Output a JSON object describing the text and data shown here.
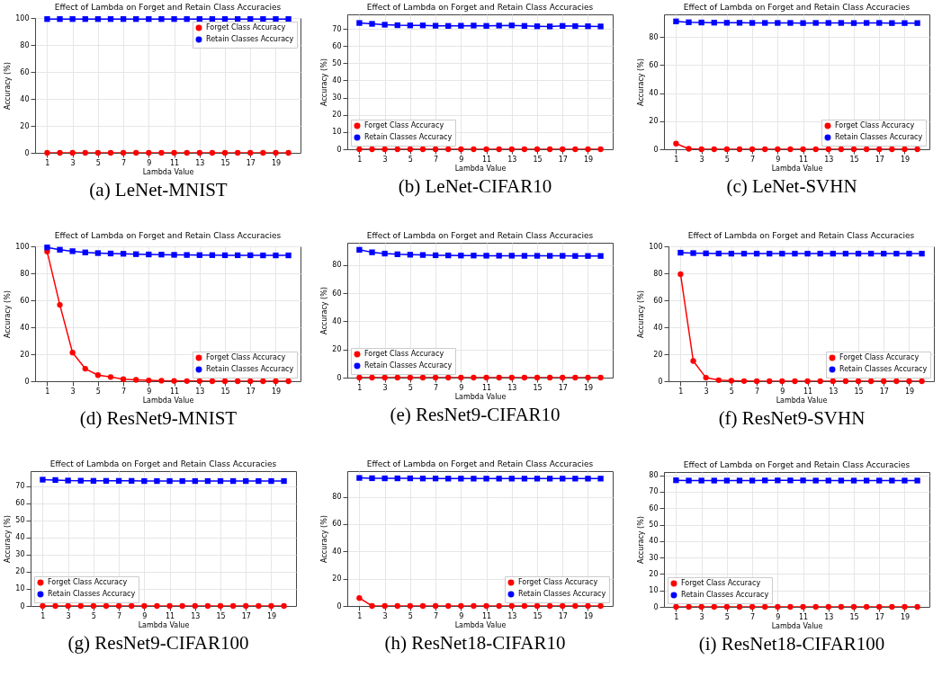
{
  "chart_data": [
    {
      "type": "line",
      "title": "Effect of Lambda on Forget and Retain Class Accuracies",
      "xlabel": "Lambda Value",
      "ylabel": "Accuracy (%)",
      "annotations": [
        "(a) LeNet-MNIST"
      ],
      "x": [
        1,
        2,
        3,
        4,
        5,
        6,
        7,
        8,
        9,
        10,
        11,
        12,
        13,
        14,
        15,
        16,
        17,
        18,
        19,
        20
      ],
      "xlim": [
        0.05,
        20.95
      ],
      "xticks": [
        1,
        3,
        5,
        7,
        9,
        11,
        13,
        15,
        17,
        19
      ],
      "ylim": [
        0,
        100
      ],
      "yticks": [
        0,
        20,
        40,
        60,
        80,
        100
      ],
      "grid": true,
      "legend": "top right",
      "series": [
        {
          "name": "Forget Class Accuracy",
          "color": "#ff0000",
          "marker": "circle",
          "values": [
            0,
            0,
            0,
            0,
            0,
            0,
            0,
            0,
            0,
            0,
            0,
            0,
            0,
            0,
            0,
            0,
            0,
            0,
            0,
            0
          ]
        },
        {
          "name": "Retain Classes Accuracy",
          "color": "#0000ff",
          "marker": "square",
          "values": [
            99.2,
            99.2,
            99.2,
            99.2,
            99.2,
            99.2,
            99.2,
            99.2,
            99.2,
            99.2,
            99.2,
            99.2,
            99.2,
            99.2,
            99.2,
            99.2,
            99.2,
            99.2,
            99.2,
            99.2
          ]
        }
      ]
    },
    {
      "type": "line",
      "title": "Effect of Lambda on Forget and Retain Class Accuracies",
      "xlabel": "Lambda Value",
      "ylabel": "Accuracy (%)",
      "annotations": [
        "(b) LeNet-CIFAR10"
      ],
      "x": [
        1,
        2,
        3,
        4,
        5,
        6,
        7,
        8,
        9,
        10,
        11,
        12,
        13,
        14,
        15,
        16,
        17,
        18,
        19,
        20
      ],
      "xlim": [
        0.05,
        20.95
      ],
      "xticks": [
        1,
        3,
        5,
        7,
        9,
        11,
        13,
        15,
        17,
        19
      ],
      "ylim": [
        0,
        78.4
      ],
      "yticks": [
        0,
        10,
        20,
        30,
        40,
        50,
        60,
        70
      ],
      "grid": true,
      "legend": "bottom left",
      "series": [
        {
          "name": "Forget Class Accuracy",
          "color": "#ff0000",
          "marker": "circle",
          "values": [
            0,
            0,
            0,
            0,
            0,
            0,
            0,
            0,
            0,
            0,
            0,
            0,
            0,
            0,
            0,
            0,
            0,
            0,
            0,
            0
          ]
        },
        {
          "name": "Retain Classes Accuracy",
          "color": "#0000ff",
          "marker": "square",
          "values": [
            73.4,
            72.9,
            72.4,
            72.1,
            72.0,
            72.0,
            71.8,
            71.7,
            71.8,
            71.9,
            71.7,
            71.9,
            72.0,
            71.7,
            71.5,
            71.4,
            71.7,
            71.6,
            71.5,
            71.4
          ]
        }
      ]
    },
    {
      "type": "line",
      "title": "Effect of Lambda on Forget and Retain Class Accuracies",
      "xlabel": "Lambda Value",
      "ylabel": "Accuracy (%)",
      "annotations": [
        "(c) LeNet-SVHN"
      ],
      "x": [
        1,
        2,
        3,
        4,
        5,
        6,
        7,
        8,
        9,
        10,
        11,
        12,
        13,
        14,
        15,
        16,
        17,
        18,
        19,
        20
      ],
      "xlim": [
        0.05,
        20.95
      ],
      "xticks": [
        1,
        3,
        5,
        7,
        9,
        11,
        13,
        15,
        17,
        19
      ],
      "ylim": [
        0,
        96.2
      ],
      "yticks": [
        0,
        20,
        40,
        60,
        80
      ],
      "grid": true,
      "legend": "bottom right",
      "series": [
        {
          "name": "Forget Class Accuracy",
          "color": "#ff0000",
          "marker": "circle",
          "values": [
            4.0,
            0.3,
            0,
            0,
            0,
            0,
            0,
            0,
            0,
            0,
            0,
            0,
            0,
            0,
            0,
            0,
            0,
            0,
            0,
            0
          ]
        },
        {
          "name": "Retain Classes Accuracy",
          "color": "#0000ff",
          "marker": "square",
          "values": [
            91.2,
            90.6,
            90.4,
            90.3,
            90.2,
            90.2,
            90.1,
            90.1,
            90.1,
            90.1,
            90.0,
            90.1,
            90.1,
            90.1,
            90.0,
            90.1,
            90.1,
            90.0,
            90.0,
            90.0
          ]
        }
      ]
    },
    {
      "type": "line",
      "title": "Effect of Lambda on Forget and Retain Class Accuracies",
      "xlabel": "Lambda Value",
      "ylabel": "Accuracy (%)",
      "annotations": [
        "(d) ResNet9-MNIST"
      ],
      "x": [
        1,
        2,
        3,
        4,
        5,
        6,
        7,
        8,
        9,
        10,
        11,
        12,
        13,
        14,
        15,
        16,
        17,
        18,
        19,
        20
      ],
      "xlim": [
        0.05,
        20.95
      ],
      "xticks": [
        1,
        3,
        5,
        7,
        9,
        11,
        13,
        15,
        17,
        19
      ],
      "ylim": [
        0,
        100
      ],
      "yticks": [
        0,
        20,
        40,
        60,
        80,
        100
      ],
      "grid": true,
      "legend": "bottom right",
      "series": [
        {
          "name": "Forget Class Accuracy",
          "color": "#ff0000",
          "marker": "circle",
          "values": [
            96.1,
            56.6,
            21.2,
            9.3,
            4.5,
            3.1,
            1.5,
            1.0,
            0.6,
            0.4,
            0.2,
            0.1,
            0.1,
            0,
            0,
            0,
            0,
            0,
            0,
            0
          ]
        },
        {
          "name": "Retain Classes Accuracy",
          "color": "#0000ff",
          "marker": "square",
          "values": [
            99.2,
            97.5,
            96.4,
            95.5,
            95.0,
            94.7,
            94.5,
            94.2,
            94.0,
            93.9,
            93.7,
            93.6,
            93.5,
            93.5,
            93.4,
            93.4,
            93.4,
            93.3,
            93.3,
            93.3
          ]
        }
      ]
    },
    {
      "type": "line",
      "title": "Effect of Lambda on Forget and Retain Class Accuracies",
      "xlabel": "Lambda Value",
      "ylabel": "Accuracy (%)",
      "annotations": [
        "(e) ResNet9-CIFAR10"
      ],
      "x": [
        1,
        2,
        3,
        4,
        5,
        6,
        7,
        8,
        9,
        10,
        11,
        12,
        13,
        14,
        15,
        16,
        17,
        18,
        19,
        20
      ],
      "xlim": [
        0.05,
        20.95
      ],
      "xticks": [
        1,
        3,
        5,
        7,
        9,
        11,
        13,
        15,
        17,
        19
      ],
      "ylim": [
        0,
        95.9
      ],
      "yticks": [
        0,
        20,
        40,
        60,
        80
      ],
      "grid": true,
      "legend": "bottom left",
      "series": [
        {
          "name": "Forget Class Accuracy",
          "color": "#ff0000",
          "marker": "circle",
          "values": [
            0,
            0,
            0,
            0,
            0,
            0,
            0,
            0,
            0,
            0,
            0,
            0,
            0,
            0,
            0,
            0,
            0,
            0,
            0,
            0
          ]
        },
        {
          "name": "Retain Classes Accuracy",
          "color": "#0000ff",
          "marker": "square",
          "values": [
            90.9,
            89.1,
            88.2,
            87.7,
            87.4,
            87.2,
            87.0,
            86.9,
            86.8,
            86.8,
            86.7,
            86.7,
            86.7,
            86.6,
            86.6,
            86.6,
            86.6,
            86.5,
            86.5,
            86.5
          ]
        }
      ]
    },
    {
      "type": "line",
      "title": "Effect of Lambda on Forget and Retain Class Accuracies",
      "xlabel": "Lambda Value",
      "ylabel": "Accuracy (%)",
      "annotations": [
        "(f) ResNet9-SVHN"
      ],
      "x": [
        1,
        2,
        3,
        4,
        5,
        6,
        7,
        8,
        9,
        10,
        11,
        12,
        13,
        14,
        15,
        16,
        17,
        18,
        19,
        20
      ],
      "xlim": [
        0.05,
        20.95
      ],
      "xticks": [
        1,
        3,
        5,
        7,
        9,
        11,
        13,
        15,
        17,
        19
      ],
      "ylim": [
        0,
        100
      ],
      "yticks": [
        0,
        20,
        40,
        60,
        80,
        100
      ],
      "grid": true,
      "legend": "bottom right",
      "series": [
        {
          "name": "Forget Class Accuracy",
          "color": "#ff0000",
          "marker": "circle",
          "values": [
            79.4,
            15.0,
            2.6,
            0.8,
            0.4,
            0.1,
            0,
            0,
            0,
            0,
            0,
            0,
            0,
            0,
            0,
            0,
            0,
            0,
            0,
            0
          ]
        },
        {
          "name": "Retain Classes Accuracy",
          "color": "#0000ff",
          "marker": "square",
          "values": [
            95.3,
            95.0,
            94.8,
            94.7,
            94.6,
            94.6,
            94.6,
            94.6,
            94.6,
            94.6,
            94.6,
            94.6,
            94.6,
            94.6,
            94.6,
            94.6,
            94.6,
            94.6,
            94.6,
            94.6
          ]
        }
      ]
    },
    {
      "type": "line",
      "title": "Effect of Lambda on Forget and Retain Class Accuracies",
      "xlabel": "Lambda Value",
      "ylabel": "Accuracy (%)",
      "annotations": [
        "(g) ResNet9-CIFAR100"
      ],
      "x": [
        1,
        2,
        3,
        4,
        5,
        6,
        7,
        8,
        9,
        10,
        11,
        12,
        13,
        14,
        15,
        16,
        17,
        18,
        19,
        20
      ],
      "xlim": [
        0.05,
        20.95
      ],
      "xticks": [
        1,
        3,
        5,
        7,
        9,
        11,
        13,
        15,
        17,
        19
      ],
      "ylim": [
        0,
        78.8
      ],
      "yticks": [
        0,
        10,
        20,
        30,
        40,
        50,
        60,
        70
      ],
      "grid": true,
      "legend": "bottom left",
      "series": [
        {
          "name": "Forget Class Accuracy",
          "color": "#ff0000",
          "marker": "circle",
          "values": [
            0,
            0,
            0,
            0,
            0,
            0,
            0,
            0,
            0,
            0,
            0,
            0,
            0,
            0,
            0,
            0,
            0,
            0,
            0,
            0
          ]
        },
        {
          "name": "Retain Classes Accuracy",
          "color": "#0000ff",
          "marker": "square",
          "values": [
            73.8,
            73.6,
            73.3,
            73.2,
            73.1,
            73.1,
            73.1,
            73.1,
            73.0,
            73.0,
            73.0,
            73.0,
            73.0,
            73.0,
            73.0,
            73.0,
            73.0,
            73.0,
            73.0,
            73.0
          ]
        }
      ]
    },
    {
      "type": "line",
      "title": "Effect of Lambda on Forget and Retain Class Accuracies",
      "xlabel": "Lambda Value",
      "ylabel": "Accuracy (%)",
      "annotations": [
        "(h) ResNet18-CIFAR10"
      ],
      "x": [
        1,
        2,
        3,
        4,
        5,
        6,
        7,
        8,
        9,
        10,
        11,
        12,
        13,
        14,
        15,
        16,
        17,
        18,
        19,
        20
      ],
      "xlim": [
        0.05,
        20.95
      ],
      "xticks": [
        1,
        3,
        5,
        7,
        9,
        11,
        13,
        15,
        17,
        19
      ],
      "ylim": [
        0,
        98.8
      ],
      "yticks": [
        0,
        20,
        40,
        60,
        80
      ],
      "grid": true,
      "legend": "bottom right",
      "series": [
        {
          "name": "Forget Class Accuracy",
          "color": "#ff0000",
          "marker": "circle",
          "values": [
            5.8,
            0,
            0,
            0,
            0,
            0,
            0,
            0,
            0,
            0,
            0,
            0,
            0,
            0,
            0,
            0,
            0,
            0,
            0,
            0
          ]
        },
        {
          "name": "Retain Classes Accuracy",
          "color": "#0000ff",
          "marker": "square",
          "values": [
            93.8,
            93.6,
            93.5,
            93.5,
            93.5,
            93.4,
            93.4,
            93.3,
            93.3,
            93.3,
            93.3,
            93.3,
            93.3,
            93.3,
            93.3,
            93.3,
            93.3,
            93.3,
            93.3,
            93.3
          ]
        }
      ]
    },
    {
      "type": "line",
      "title": "Effect of Lambda on Forget and Retain Class Accuracies",
      "xlabel": "Lambda Value",
      "ylabel": "Accuracy (%)",
      "annotations": [
        "(i) ResNet18-CIFAR100"
      ],
      "x": [
        1,
        2,
        3,
        4,
        5,
        6,
        7,
        8,
        9,
        10,
        11,
        12,
        13,
        14,
        15,
        16,
        17,
        18,
        19,
        20
      ],
      "xlim": [
        0.05,
        20.95
      ],
      "xticks": [
        1,
        3,
        5,
        7,
        9,
        11,
        13,
        15,
        17,
        19
      ],
      "ylim": [
        0,
        82
      ],
      "yticks": [
        0,
        10,
        20,
        30,
        40,
        50,
        60,
        70,
        80
      ],
      "grid": true,
      "legend": "bottom left",
      "series": [
        {
          "name": "Forget Class Accuracy",
          "color": "#ff0000",
          "marker": "circle",
          "values": [
            0,
            0,
            0,
            0,
            0,
            0,
            0,
            0,
            0,
            0,
            0,
            0,
            0,
            0,
            0,
            0,
            0,
            0,
            0,
            0
          ]
        },
        {
          "name": "Retain Classes Accuracy",
          "color": "#0000ff",
          "marker": "square",
          "values": [
            77.0,
            76.8,
            76.8,
            76.8,
            76.8,
            76.8,
            76.8,
            76.9,
            76.9,
            76.9,
            76.9,
            76.8,
            76.8,
            76.8,
            76.8,
            76.8,
            76.8,
            76.8,
            76.8,
            76.8
          ]
        }
      ]
    }
  ]
}
